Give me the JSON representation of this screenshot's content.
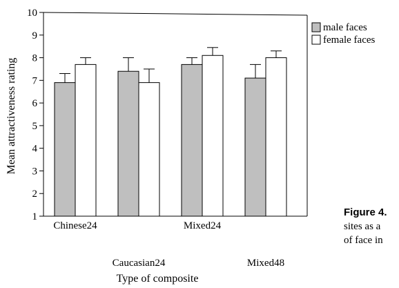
{
  "chart_data": {
    "type": "bar",
    "categories": [
      "Chinese24",
      "Caucasian24",
      "Mixed24",
      "Mixed48"
    ],
    "series": [
      {
        "name": "male faces",
        "color": "#bfbfbf",
        "values": [
          6.9,
          7.4,
          7.7,
          7.1
        ],
        "errors": [
          0.4,
          0.6,
          0.3,
          0.6
        ]
      },
      {
        "name": "female faces",
        "color": "#ffffff",
        "values": [
          7.7,
          6.9,
          8.1,
          8.0
        ],
        "errors": [
          0.3,
          0.6,
          0.35,
          0.3
        ]
      }
    ],
    "ylim": [
      1,
      10
    ],
    "yticks": [
      "1",
      "2",
      "3",
      "4",
      "5",
      "6",
      "7",
      "8",
      "9",
      "10"
    ],
    "xlabel": "Type of composite",
    "ylabel": "Mean attractiveness rating",
    "legend_position": "top-right",
    "grid": false
  },
  "caption": {
    "label": "Figure 4.",
    "line1": "sites as a",
    "line2": "of face in"
  }
}
